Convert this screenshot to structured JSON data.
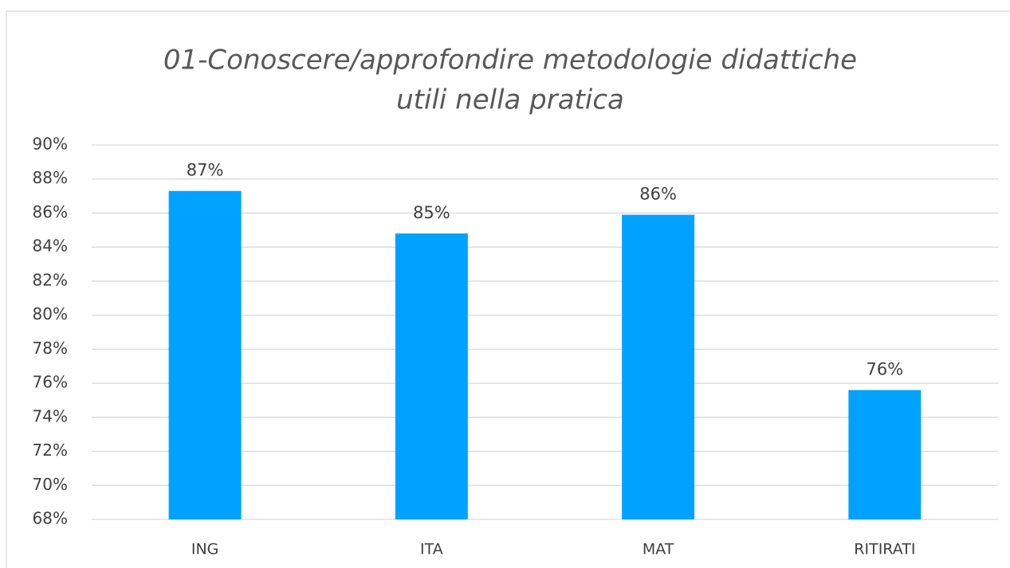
{
  "chart_data": {
    "type": "bar",
    "title": [
      "01-Conoscere/approfondire metodologie didattiche",
      "utili nella pratica"
    ],
    "categories": [
      "ING",
      "ITA",
      "MAT",
      "RITIRATI"
    ],
    "values": [
      87.3,
      84.8,
      85.9,
      75.6
    ],
    "value_labels": [
      "87%",
      "85%",
      "86%",
      "76%"
    ],
    "color": "#00a2ff",
    "ylim": [
      68,
      90
    ],
    "yticks": [
      {
        "value": 68,
        "label": "68%"
      },
      {
        "value": 70,
        "label": "70%"
      },
      {
        "value": 72,
        "label": "72%"
      },
      {
        "value": 74,
        "label": "74%"
      },
      {
        "value": 76,
        "label": "76%"
      },
      {
        "value": 78,
        "label": "78%"
      },
      {
        "value": 80,
        "label": "80%"
      },
      {
        "value": 82,
        "label": "82%"
      },
      {
        "value": 84,
        "label": "84%"
      },
      {
        "value": 86,
        "label": "86%"
      },
      {
        "value": 88,
        "label": "88%"
      },
      {
        "value": 90,
        "label": "90%"
      }
    ],
    "grid": true
  }
}
